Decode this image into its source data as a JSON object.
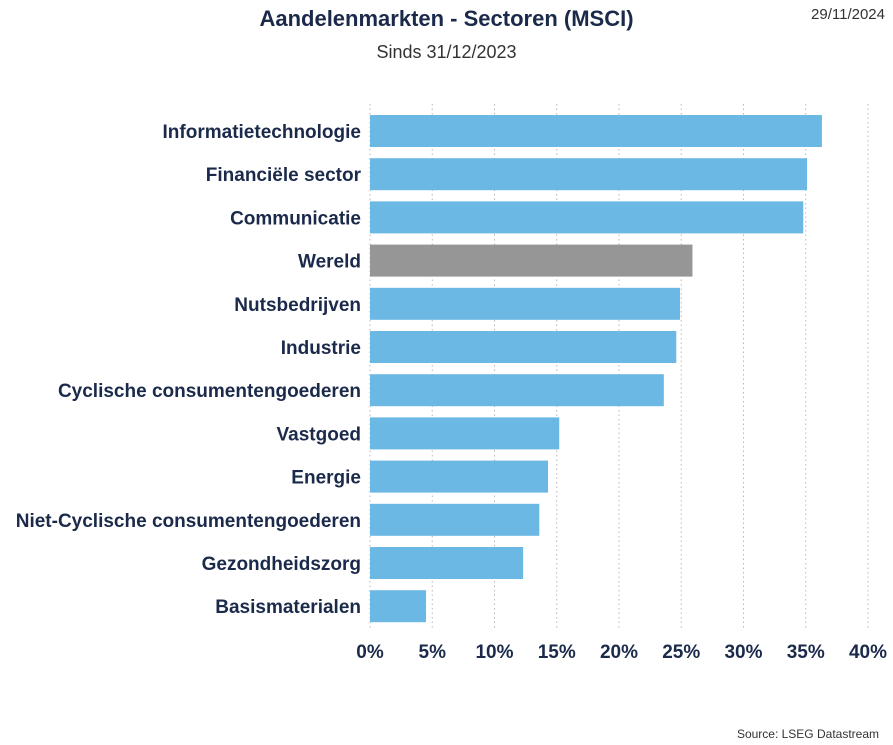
{
  "header": {
    "title": "Aandelenmarkten - Sectoren (MSCI)",
    "subtitle": "Sinds 31/12/2023",
    "date": "29/11/2024"
  },
  "footer": {
    "source": "Source: LSEG Datastream"
  },
  "chart_data": {
    "type": "bar",
    "orientation": "horizontal",
    "title": "Aandelenmarkten - Sectoren (MSCI)",
    "subtitle": "Sinds 31/12/2023",
    "categories": [
      "Informatietechnologie",
      "Financiële sector",
      "Communicatie",
      "Wereld",
      "Nutsbedrijven",
      "Industrie",
      "Cyclische consumentengoederen",
      "Vastgoed",
      "Energie",
      "Niet-Cyclische consumentengoederen",
      "Gezondheidszorg",
      "Basismaterialen"
    ],
    "values": [
      36.3,
      35.1,
      34.8,
      25.9,
      24.9,
      24.6,
      23.6,
      15.2,
      14.3,
      13.6,
      12.3,
      4.5
    ],
    "highlight_category": "Wereld",
    "colors": {
      "bar": "#6bb8e4",
      "highlight": "#969696",
      "grid": "#b8b8b8"
    },
    "xlim": [
      0,
      40
    ],
    "xticks": [
      "0%",
      "5%",
      "10%",
      "15%",
      "20%",
      "25%",
      "30%",
      "35%",
      "40%"
    ],
    "tick_step": 5,
    "grid": true,
    "xlabel": "",
    "ylabel": ""
  }
}
